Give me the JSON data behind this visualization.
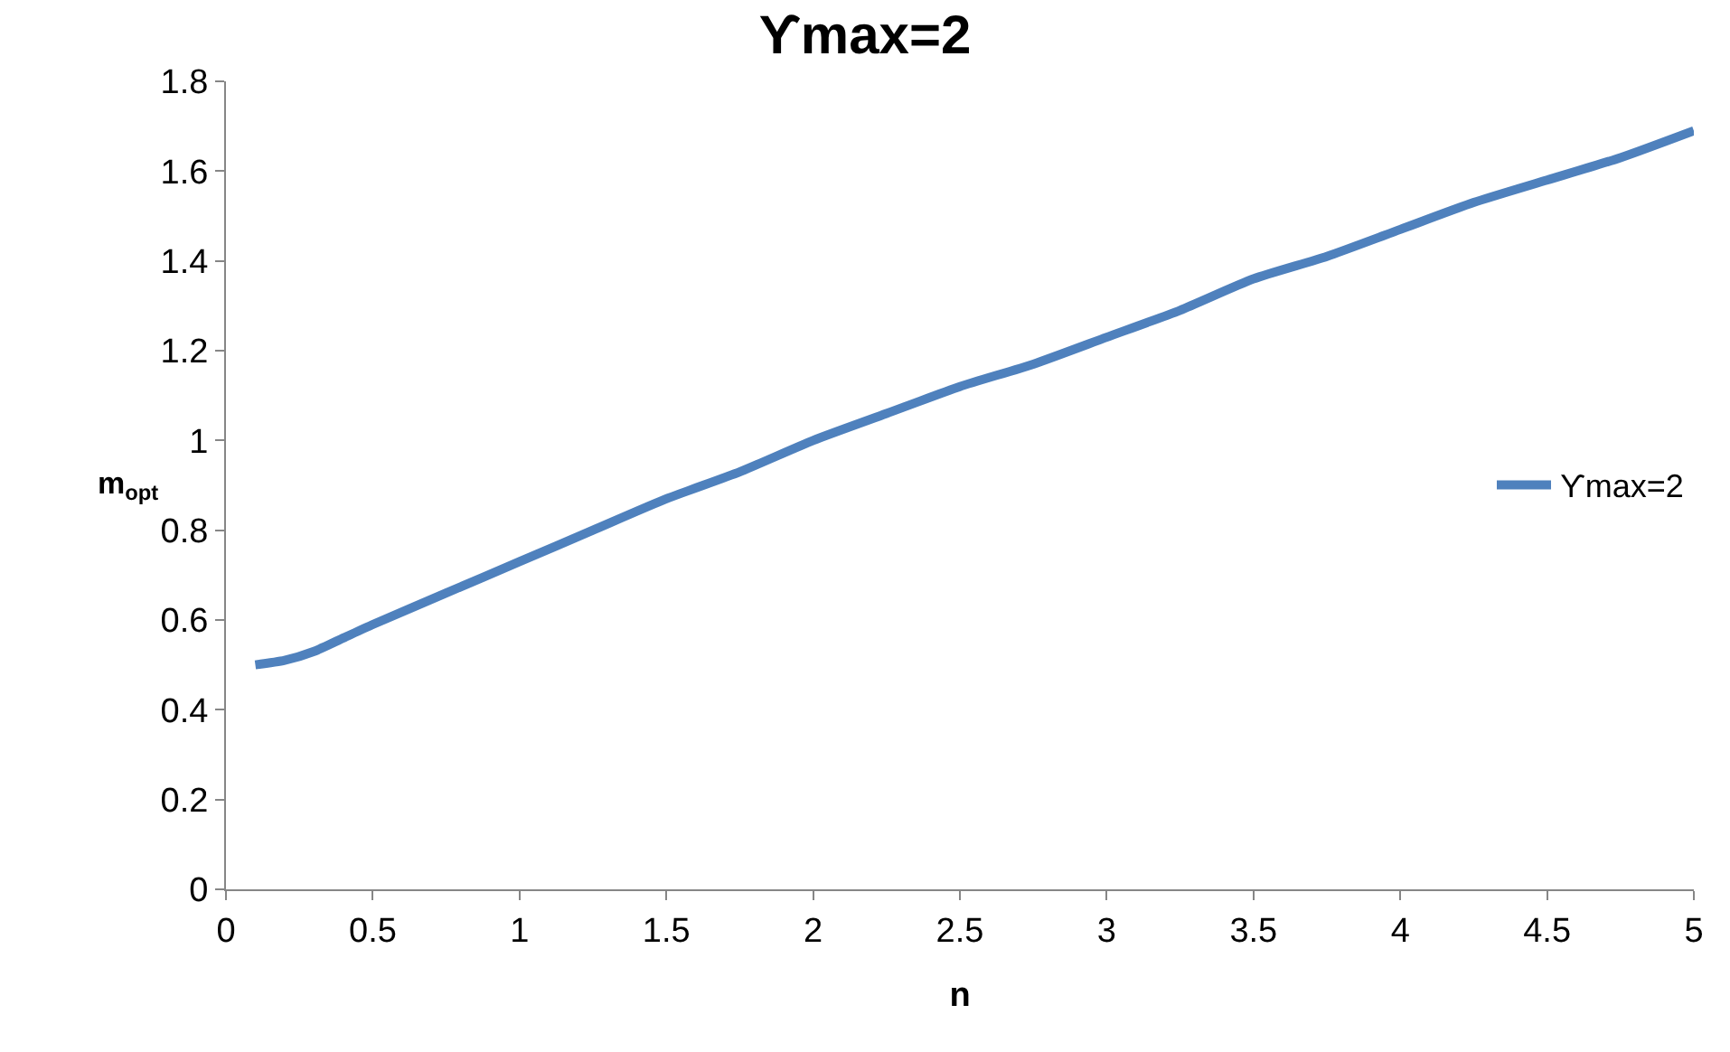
{
  "chart_data": {
    "type": "line",
    "title": "ϒmax=2",
    "xlabel": "n",
    "ylabel": "m$_{opt}$",
    "x": [
      0.1,
      0.2,
      0.3,
      0.4,
      0.5,
      0.75,
      1,
      1.25,
      1.5,
      1.75,
      2,
      2.25,
      2.5,
      2.75,
      3,
      3.25,
      3.5,
      3.75,
      4,
      4.25,
      4.5,
      4.75,
      5
    ],
    "series": [
      {
        "name": "ϒmax=2",
        "color": "#4f81bd",
        "values": [
          0.5,
          0.51,
          0.53,
          0.56,
          0.59,
          0.66,
          0.73,
          0.8,
          0.87,
          0.93,
          1.0,
          1.06,
          1.12,
          1.17,
          1.23,
          1.29,
          1.36,
          1.41,
          1.47,
          1.53,
          1.58,
          1.63,
          1.69
        ]
      }
    ],
    "xlim": [
      0,
      5
    ],
    "xticks": [
      0,
      0.5,
      1,
      1.5,
      2,
      2.5,
      3,
      3.5,
      4,
      4.5,
      5
    ],
    "ylim": [
      0,
      1.8
    ],
    "yticks": [
      0,
      0.2,
      0.4,
      0.6,
      0.8,
      1,
      1.2,
      1.4,
      1.6,
      1.8
    ],
    "grid": false,
    "legend": "right",
    "marker": "none",
    "line_style": "solid"
  }
}
